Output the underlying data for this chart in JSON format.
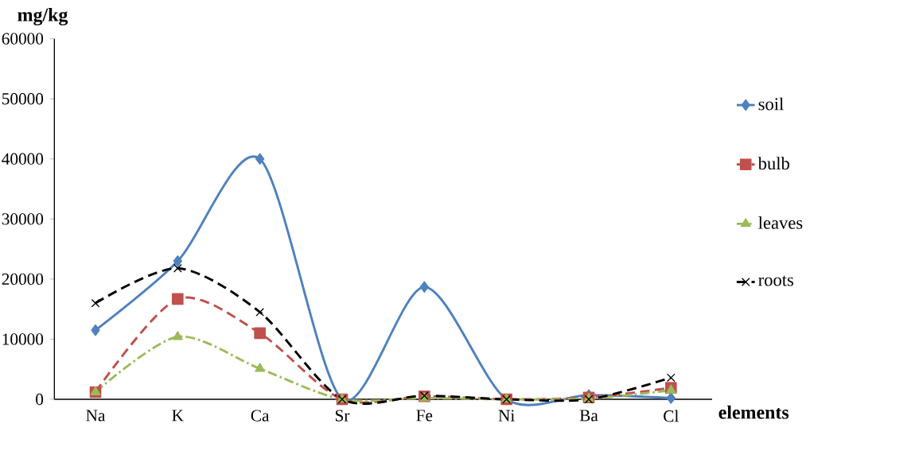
{
  "chart_data": {
    "type": "line",
    "xlabel": "elements",
    "ylabel": "mg/kg",
    "categories": [
      "Na",
      "K",
      "Ca",
      "Sr",
      "Fe",
      "Ni",
      "Ba",
      "Cl"
    ],
    "series": [
      {
        "name": "soil",
        "color": "#4f81bd",
        "marker": "diamond",
        "line_style": "solid",
        "values": [
          11500,
          23000,
          40000,
          0,
          18700,
          0,
          700,
          200
        ]
      },
      {
        "name": "bulb",
        "color": "#c0504d",
        "marker": "square",
        "line_style": "dashed",
        "values": [
          1200,
          16700,
          11000,
          0,
          500,
          0,
          300,
          1900
        ]
      },
      {
        "name": "leaves",
        "color": "#9bbb59",
        "marker": "triangle",
        "line_style": "dashdot",
        "values": [
          1200,
          10400,
          5100,
          0,
          200,
          0,
          100,
          1500
        ]
      },
      {
        "name": "roots",
        "color": "#000000",
        "marker": "cross",
        "line_style": "dashed",
        "values": [
          16000,
          21800,
          14500,
          0,
          600,
          0,
          0,
          3600
        ]
      }
    ],
    "ylim": [
      0,
      60000
    ],
    "yticks": [
      0,
      10000,
      20000,
      30000,
      40000,
      50000,
      60000
    ],
    "grid": false,
    "legend": "right"
  }
}
